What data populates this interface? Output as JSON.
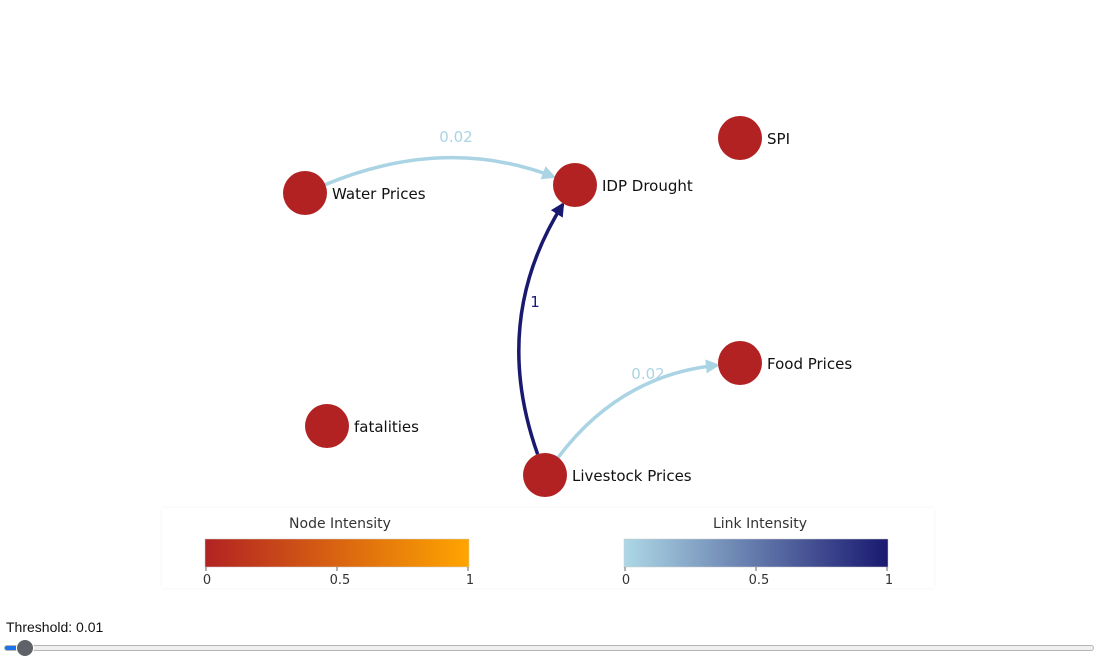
{
  "nodes": [
    {
      "id": "water",
      "label": "Water Prices",
      "intensity": 0
    },
    {
      "id": "idp",
      "label": "IDP Drought",
      "intensity": 0
    },
    {
      "id": "spi",
      "label": "SPI",
      "intensity": 0
    },
    {
      "id": "food",
      "label": "Food Prices",
      "intensity": 0
    },
    {
      "id": "fatalities",
      "label": "fatalities",
      "intensity": 0
    },
    {
      "id": "livestock",
      "label": "Livestock Prices",
      "intensity": 0
    }
  ],
  "edges": [
    {
      "source": "water",
      "target": "idp",
      "weight": 0.02,
      "label": "0.02"
    },
    {
      "source": "livestock",
      "target": "idp",
      "weight": 1,
      "label": "1"
    },
    {
      "source": "livestock",
      "target": "food",
      "weight": 0.02,
      "label": "0.02"
    }
  ],
  "legends": {
    "node": {
      "title": "Node Intensity",
      "ticks": [
        "0",
        "0.5",
        "1"
      ],
      "color_start": "#b22222",
      "color_end": "#ffa500"
    },
    "link": {
      "title": "Link Intensity",
      "ticks": [
        "0",
        "0.5",
        "1"
      ],
      "color_start": "#add8e6",
      "color_end": "#191970"
    }
  },
  "threshold": {
    "label": "Threshold: 0.01",
    "value": 0.01,
    "min": 0,
    "max": 1
  }
}
